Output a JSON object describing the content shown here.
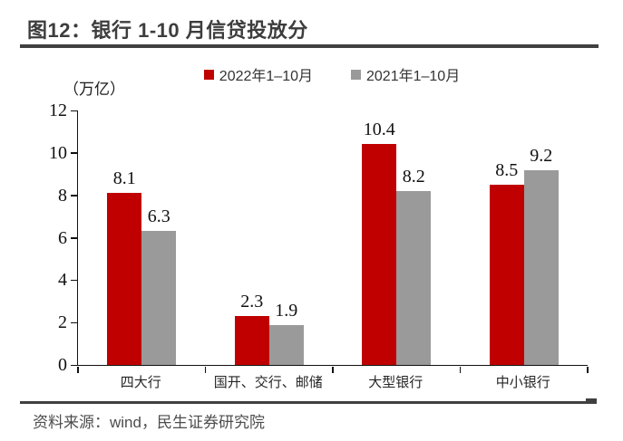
{
  "header": {
    "title": "图12：银行 1-10 月信贷投放分"
  },
  "chart_data": {
    "type": "bar",
    "title": "图12：银行 1-10 月信贷投放分",
    "unit_label": "（万亿）",
    "categories": [
      "四大行",
      "国开、交行、邮储",
      "大型银行",
      "中小银行"
    ],
    "series": [
      {
        "name": "2022年1–10月",
        "color": "#c00000",
        "values": [
          8.1,
          2.3,
          10.4,
          8.5
        ]
      },
      {
        "name": "2021年1–10月",
        "color": "#9a9a9a",
        "values": [
          6.3,
          1.9,
          8.2,
          9.2
        ]
      }
    ],
    "ylim": [
      0,
      12
    ],
    "yticks": [
      0,
      2,
      4,
      6,
      8,
      10,
      12
    ],
    "grid": false,
    "legend_position": "top",
    "bar_value_labels": true
  },
  "footer": {
    "source": "资料来源：wind，民生证券研究院"
  }
}
